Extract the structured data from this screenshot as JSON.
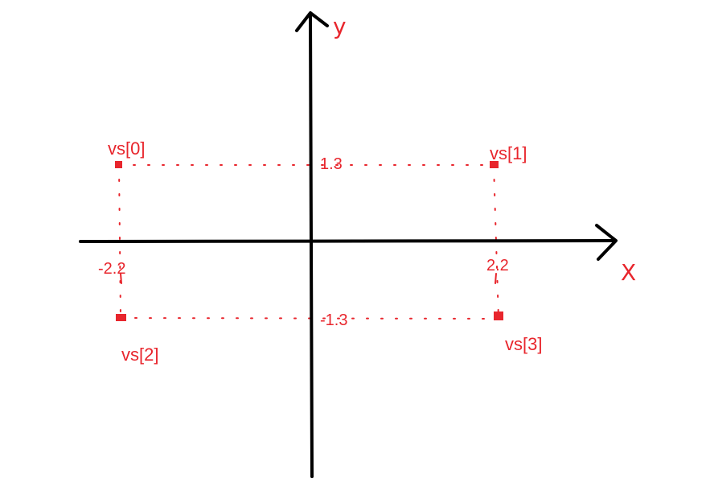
{
  "axes": {
    "x_label": "X",
    "y_label": "y",
    "color": "#000000"
  },
  "accent_color": "#e8262d",
  "vertices": [
    {
      "label": "vs[0]",
      "x": -2.2,
      "y": 1.3
    },
    {
      "label": "vs[1]",
      "x": 2.2,
      "y": 1.3
    },
    {
      "label": "vs[2]",
      "x": -2.2,
      "y": -1.3
    },
    {
      "label": "vs[3]",
      "x": 2.2,
      "y": -1.3
    }
  ],
  "value_labels": {
    "x_left": "-2.2",
    "x_right": "2.2",
    "y_top": "1.3",
    "y_bottom": "-1.3"
  }
}
